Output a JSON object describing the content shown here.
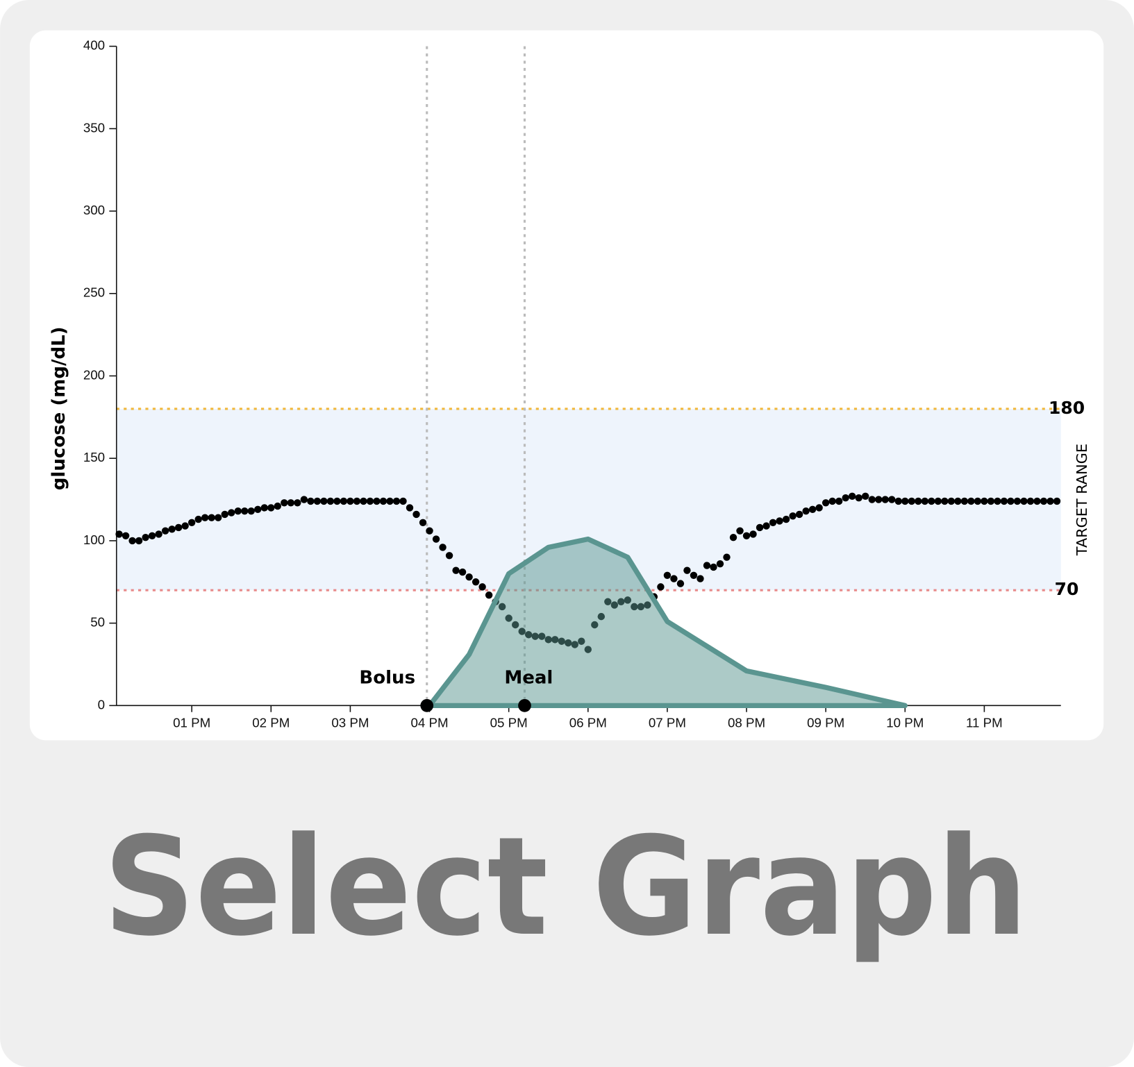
{
  "chart_data": {
    "type": "combo",
    "y_label": "glucose (mg/dL)",
    "ylim": [
      0,
      400
    ],
    "yticks": [
      0,
      50,
      100,
      150,
      200,
      250,
      300,
      350,
      400
    ],
    "xlim": [
      723,
      1438
    ],
    "xticks": [
      {
        "value": 780,
        "label": "01 PM"
      },
      {
        "value": 840,
        "label": "02 PM"
      },
      {
        "value": 900,
        "label": "03 PM"
      },
      {
        "value": 960,
        "label": "04 PM"
      },
      {
        "value": 1020,
        "label": "05 PM"
      },
      {
        "value": 1080,
        "label": "06 PM"
      },
      {
        "value": 1140,
        "label": "07 PM"
      },
      {
        "value": 1200,
        "label": "08 PM"
      },
      {
        "value": 1260,
        "label": "09 PM"
      },
      {
        "value": 1320,
        "label": "10 PM"
      },
      {
        "value": 1380,
        "label": "11 PM"
      }
    ],
    "target_range": {
      "label": "TARGET RANGE",
      "low": 70,
      "high": 180,
      "low_color": "#e88a8a",
      "high_color": "#f0b83c",
      "fill": "#eef4fc"
    },
    "events": [
      {
        "label": "Bolus",
        "x": 958
      },
      {
        "label": "Meal",
        "x": 1032
      }
    ],
    "series": [
      {
        "type": "scatter",
        "color": "#000000",
        "x": [
          725,
          730,
          735,
          740,
          745,
          750,
          755,
          760,
          765,
          770,
          775,
          780,
          785,
          790,
          795,
          800,
          805,
          810,
          815,
          820,
          825,
          830,
          835,
          840,
          845,
          850,
          855,
          860,
          865,
          870,
          875,
          880,
          885,
          890,
          895,
          900,
          905,
          910,
          915,
          920,
          925,
          930,
          935,
          940,
          945,
          950,
          955,
          960,
          965,
          970,
          975,
          980,
          985,
          990,
          995,
          1000,
          1005,
          1010,
          1015,
          1020,
          1025,
          1030,
          1035,
          1040,
          1045,
          1050,
          1055,
          1060,
          1065,
          1070,
          1075,
          1080,
          1085,
          1090,
          1095,
          1100,
          1105,
          1110,
          1115,
          1120,
          1125,
          1130,
          1135,
          1140,
          1145,
          1150,
          1155,
          1160,
          1165,
          1170,
          1175,
          1180,
          1185,
          1190,
          1195,
          1200,
          1205,
          1210,
          1215,
          1220,
          1225,
          1230,
          1235,
          1240,
          1245,
          1250,
          1255,
          1260,
          1265,
          1270,
          1275,
          1280,
          1285,
          1290,
          1295,
          1300,
          1305,
          1310,
          1315,
          1320,
          1325,
          1330,
          1335,
          1340,
          1345,
          1350,
          1355,
          1360,
          1365,
          1370,
          1375,
          1380,
          1385,
          1390,
          1395,
          1400,
          1405,
          1410,
          1415,
          1420,
          1425,
          1430,
          1435
        ],
        "values": [
          104,
          103,
          100,
          100,
          102,
          103,
          104,
          106,
          107,
          108,
          109,
          111,
          113,
          114,
          114,
          114,
          116,
          117,
          118,
          118,
          118,
          119,
          120,
          120,
          121,
          123,
          123,
          123,
          125,
          124,
          124,
          124,
          124,
          124,
          124,
          124,
          124,
          124,
          124,
          124,
          124,
          124,
          124,
          124,
          120,
          116,
          111,
          106,
          101,
          96,
          91,
          82,
          81,
          78,
          75,
          72,
          67,
          63,
          60,
          53,
          49,
          45,
          43,
          42,
          42,
          40,
          40,
          39,
          38,
          37,
          39,
          34,
          49,
          54,
          63,
          61,
          63,
          64,
          60,
          60,
          61,
          66,
          72,
          79,
          77,
          74,
          82,
          79,
          77,
          85,
          84,
          86,
          90,
          102,
          106,
          103,
          104,
          108,
          109,
          111,
          112,
          113,
          115,
          116,
          118,
          119,
          120,
          123,
          124,
          124,
          126,
          127,
          126,
          127,
          125,
          125,
          125,
          125,
          124,
          124,
          124,
          124,
          124,
          124,
          124,
          124,
          124,
          124,
          124,
          124,
          124,
          124,
          124,
          124,
          124,
          124,
          124,
          124,
          124,
          124,
          124,
          124,
          124
        ]
      },
      {
        "type": "area",
        "color": "#5a9590",
        "x": [
          960,
          990,
          1020,
          1050,
          1080,
          1110,
          1140,
          1170,
          1200,
          1260,
          1320
        ],
        "values": [
          0,
          31,
          80,
          96,
          101,
          90,
          51,
          36,
          21,
          11,
          0
        ]
      }
    ]
  },
  "button": {
    "label": "Select Graph"
  }
}
